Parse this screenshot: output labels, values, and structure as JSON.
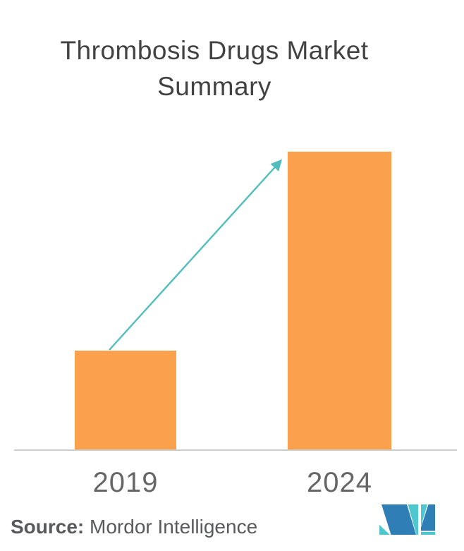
{
  "title": {
    "line1": "Thrombosis Drugs Market",
    "line2": "Summary"
  },
  "chart_data": {
    "type": "bar",
    "title": "Thrombosis Drugs Market Summary",
    "categories": [
      "2019",
      "2024"
    ],
    "values": [
      1,
      3
    ],
    "values_note": "No value axis or data labels shown; heights are relative — the 2024 bar is about 3x the 2019 bar",
    "xlabel": "",
    "ylabel": "",
    "ylim": [
      0,
      3.3
    ],
    "grid": false,
    "legend": null,
    "annotations": [
      "teal growth arrow drawn from the top of the 2019 bar to the top of the 2024 bar"
    ]
  },
  "source": {
    "label": "Source:",
    "text": " Mordor Intelligence"
  },
  "logo": {
    "name": "mordor-intelligence-logo"
  },
  "colors": {
    "background": "#FFFFFF",
    "bar": "#FBA14D",
    "arrow": "#52BDBD",
    "axis": "#CCCCCC",
    "title_text": "#424242",
    "tick_text": "#666666",
    "source_text": "#58595B",
    "logo_blue": "#2F7EB5",
    "logo_teal": "#4FC7CE"
  }
}
